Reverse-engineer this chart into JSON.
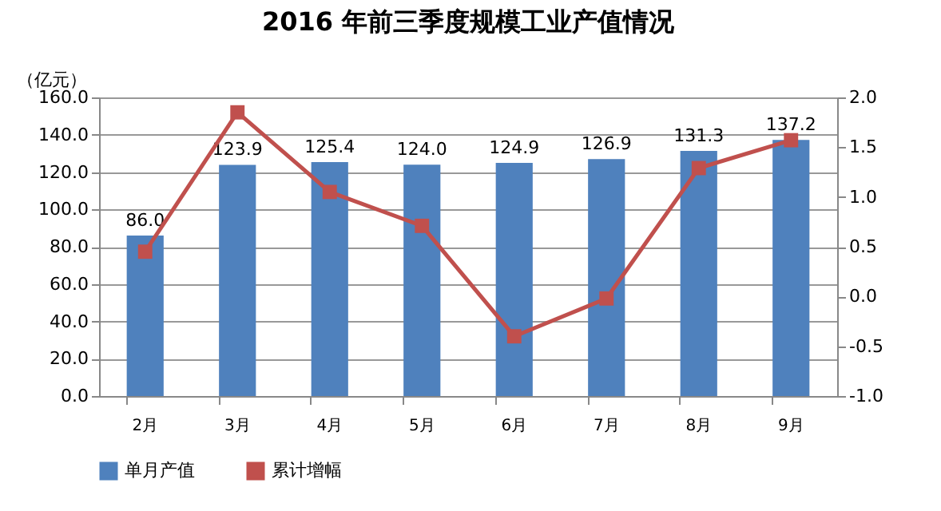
{
  "chart_data": {
    "type": "bar",
    "title": "2016 年前三季度规模工业产值情况",
    "ylabel": "（亿元）",
    "categories": [
      "2月",
      "3月",
      "4月",
      "5月",
      "6月",
      "7月",
      "8月",
      "9月"
    ],
    "series": [
      {
        "name": "单月产值",
        "color": "#4f81bd",
        "values": [
          86.0,
          123.9,
          125.4,
          124.0,
          124.9,
          126.9,
          131.3,
          137.2
        ],
        "value_labels": [
          "86.0",
          "123.9",
          "125.4",
          "124.0",
          "124.9",
          "126.9",
          "131.3",
          "137.2"
        ]
      },
      {
        "name": "累计增幅",
        "type": "line",
        "axis": "y2",
        "color": "#c0504d",
        "values": [
          0.45,
          1.85,
          1.05,
          0.71,
          -0.4,
          -0.02,
          1.29,
          1.57
        ]
      }
    ],
    "ylim": [
      0,
      160
    ],
    "yticks": [
      {
        "value": 0,
        "label": "0.0"
      },
      {
        "value": 20,
        "label": "20.0"
      },
      {
        "value": 40,
        "label": "40.0"
      },
      {
        "value": 60,
        "label": "60.0"
      },
      {
        "value": 80,
        "label": "80.0"
      },
      {
        "value": 100,
        "label": "100.0"
      },
      {
        "value": 120,
        "label": "120.0"
      },
      {
        "value": 140,
        "label": "140.0"
      },
      {
        "value": 160,
        "label": "160.0"
      }
    ],
    "y2lim": [
      -1,
      2
    ],
    "y2ticks": [
      {
        "value": -1,
        "label": "-1.0"
      },
      {
        "value": -0.5,
        "label": "-0.5"
      },
      {
        "value": 0,
        "label": "0.0"
      },
      {
        "value": 0.5,
        "label": "0.5"
      },
      {
        "value": 1,
        "label": "1.0"
      },
      {
        "value": 1.5,
        "label": "1.5"
      },
      {
        "value": 2,
        "label": "2.0"
      }
    ],
    "grid": "y",
    "legend": "bottom",
    "marker": "square",
    "line_style": "solid"
  }
}
